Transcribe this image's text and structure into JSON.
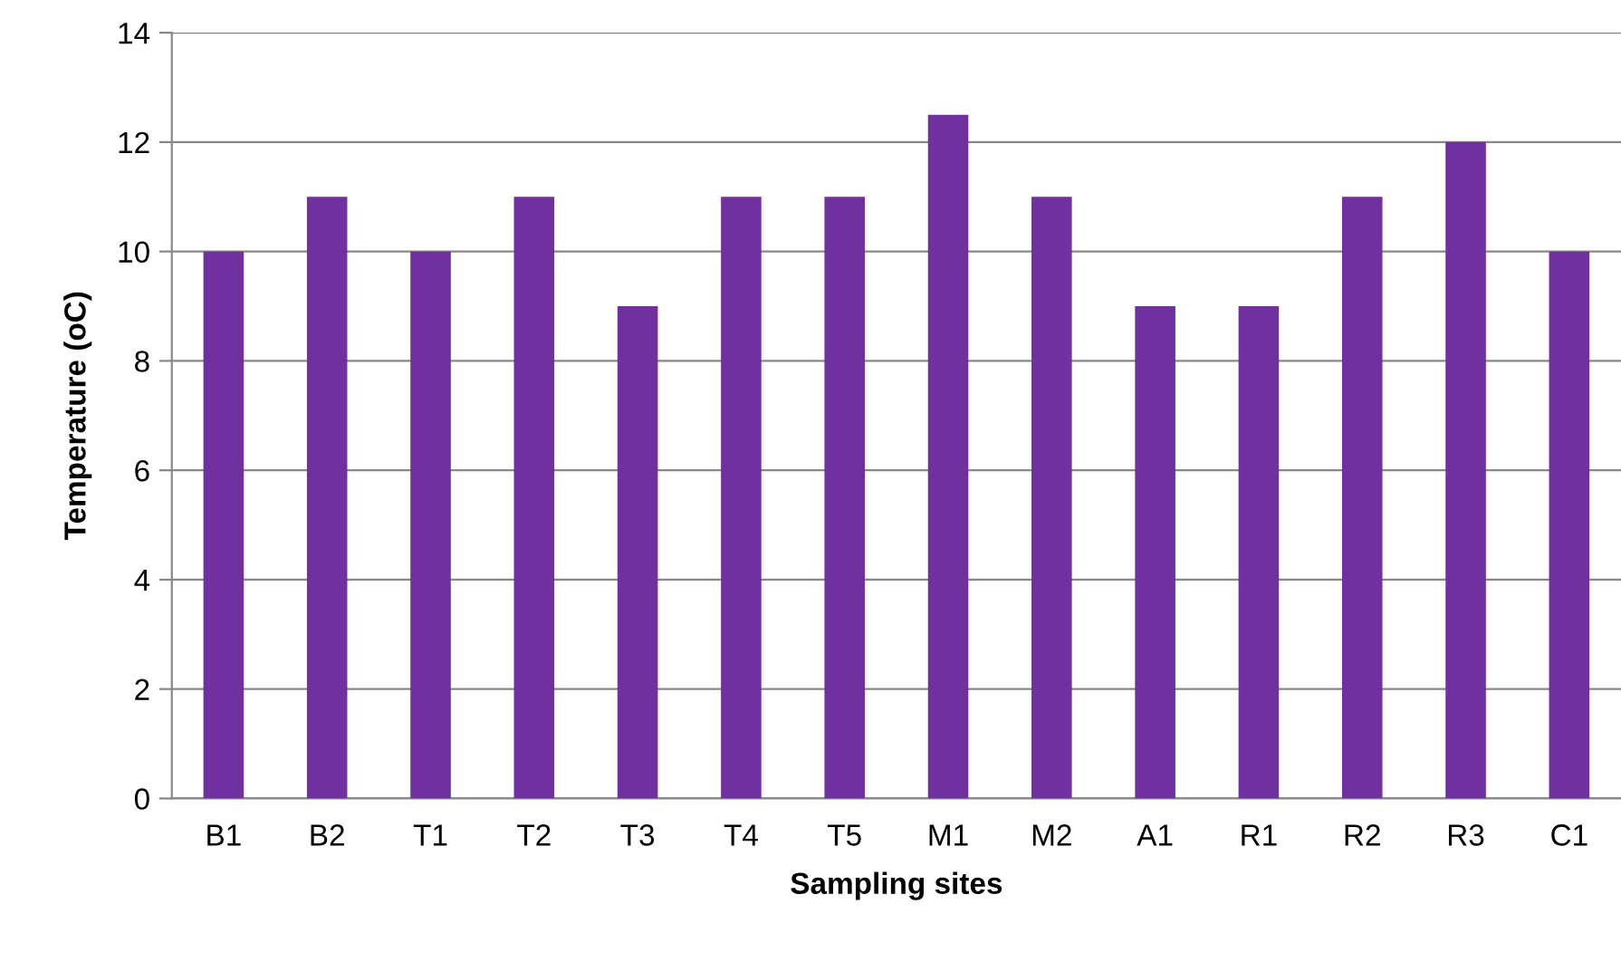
{
  "chart_data": {
    "type": "bar",
    "categories": [
      "B1",
      "B2",
      "T1",
      "T2",
      "T3",
      "T4",
      "T5",
      "M1",
      "M2",
      "A1",
      "R1",
      "R2",
      "R3",
      "C1"
    ],
    "values": [
      10,
      11,
      10,
      11,
      9,
      11,
      11,
      12.5,
      11,
      9,
      9,
      11,
      12,
      10
    ],
    "color": "#7030a0",
    "xlabel": "Sampling sites",
    "ylabel": "Temperature (oC)",
    "ylim": [
      0,
      14
    ],
    "yticks": [
      0,
      2,
      4,
      6,
      8,
      10,
      12,
      14
    ],
    "grid": "y",
    "legend": false
  }
}
